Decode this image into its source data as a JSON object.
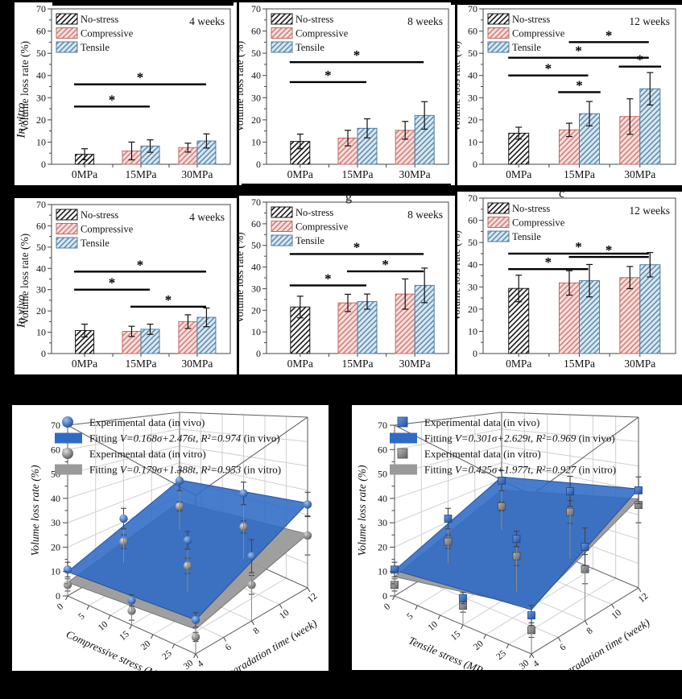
{
  "figure_background": "#000000",
  "row_labels": {
    "in_vitro": "In vitro",
    "in_vivo": "In vivo"
  },
  "redaction_fragments": {
    "middle": "g",
    "right": "c"
  },
  "colors": {
    "no_stress_line": "#1a1a1a",
    "compressive_line": "#d2837b",
    "compressive_fill": "#fadede",
    "compressive_border": "#c2685f",
    "tensile_line": "#628fb0",
    "tensile_fill": "#d9e7f2",
    "tensile_border": "#4e7da0",
    "fit_blue": "#2f6ac5",
    "fit_gray": "#9a9a9a",
    "axis": "#444444",
    "error_bar": "#111111"
  },
  "chart_data": [
    {
      "type": "bar",
      "id": "in-vitro-4w",
      "condition": "in vitro",
      "week": "4 weeks",
      "ylabel": "Volume loss rate (%)",
      "ylim": [
        0,
        70
      ],
      "ytick_major": 10,
      "ytick_minor": 5,
      "categories": [
        "0MPa",
        "15MPa",
        "30MPa"
      ],
      "series": [
        {
          "name": "No-stress",
          "values": [
            4.5,
            null,
            null
          ],
          "errors": [
            2.5,
            null,
            null
          ]
        },
        {
          "name": "Compressive",
          "values": [
            null,
            6,
            7.5
          ],
          "errors": [
            null,
            4,
            2
          ]
        },
        {
          "name": "Tensile",
          "values": [
            null,
            8.2,
            10.5
          ],
          "errors": [
            null,
            2.8,
            3.2
          ]
        }
      ],
      "significance": [
        {
          "y": 26,
          "from": "0MPa",
          "to": "15MPa"
        },
        {
          "y": 36,
          "from": "0MPa",
          "to": "30MPa"
        }
      ]
    },
    {
      "type": "bar",
      "id": "in-vitro-8w",
      "condition": "in vitro",
      "week": "8 weeks",
      "ylabel": "Volume loss rate (%)",
      "ylim": [
        0,
        70
      ],
      "ytick_major": 10,
      "ytick_minor": 5,
      "categories": [
        "0MPa",
        "15MPa",
        "30MPa"
      ],
      "series": [
        {
          "name": "No-stress",
          "values": [
            10.3,
            null,
            null
          ],
          "errors": [
            3.3,
            null,
            null
          ]
        },
        {
          "name": "Compressive",
          "values": [
            null,
            11.8,
            15.3
          ],
          "errors": [
            null,
            3.5,
            4
          ]
        },
        {
          "name": "Tensile",
          "values": [
            null,
            16.2,
            22
          ],
          "errors": [
            null,
            4.3,
            6.2
          ]
        }
      ],
      "significance": [
        {
          "y": 37,
          "from": "0MPa",
          "to": "15MPa"
        },
        {
          "y": 46,
          "from": "0MPa",
          "to": "30MPa"
        }
      ]
    },
    {
      "type": "bar",
      "id": "in-vitro-12w",
      "condition": "in vitro",
      "week": "12 weeks",
      "ylabel": "Volume loss rate (%)",
      "ylim": [
        0,
        70
      ],
      "ytick_major": 10,
      "ytick_minor": 5,
      "categories": [
        "0MPa",
        "15MPa",
        "30MPa"
      ],
      "series": [
        {
          "name": "No-stress",
          "values": [
            14,
            null,
            null
          ],
          "errors": [
            2.7,
            null,
            null
          ]
        },
        {
          "name": "Compressive",
          "values": [
            null,
            15.5,
            21.5
          ],
          "errors": [
            null,
            3,
            8
          ]
        },
        {
          "name": "Tensile",
          "values": [
            null,
            22.8,
            34
          ],
          "errors": [
            null,
            5.5,
            7.3
          ]
        }
      ],
      "significance": [
        {
          "y": 40,
          "from": "0MPa",
          "to": "15MPa"
        },
        {
          "y": 32.5,
          "from": "15MPa.C",
          "to": "15MPa.T"
        },
        {
          "y": 48,
          "from": "0MPa",
          "to": "30MPa"
        },
        {
          "y": 55,
          "from": "15MPa",
          "to": "30MPa"
        },
        {
          "y": 44,
          "from": "30MPa.C",
          "to": "30MPa.T"
        }
      ]
    },
    {
      "type": "bar",
      "id": "in-vivo-4w",
      "condition": "in vivo",
      "week": "4 weeks",
      "ylabel": "Volume loss rate (%)",
      "ylim": [
        0,
        70
      ],
      "ytick_major": 10,
      "ytick_minor": 5,
      "categories": [
        "0MPa",
        "15MPa",
        "30MPa"
      ],
      "series": [
        {
          "name": "No-stress",
          "values": [
            10.8,
            null,
            null
          ],
          "errors": [
            3,
            null,
            null
          ]
        },
        {
          "name": "Compressive",
          "values": [
            null,
            10.4,
            15
          ],
          "errors": [
            null,
            2.4,
            3.2
          ]
        },
        {
          "name": "Tensile",
          "values": [
            null,
            11.4,
            17
          ],
          "errors": [
            null,
            2.4,
            4.4
          ]
        }
      ],
      "significance": [
        {
          "y": 30,
          "from": "0MPa",
          "to": "15MPa"
        },
        {
          "y": 38.5,
          "from": "0MPa",
          "to": "30MPa"
        },
        {
          "y": 22,
          "from": "15MPa",
          "to": "30MPa"
        }
      ]
    },
    {
      "type": "bar",
      "id": "in-vivo-8w",
      "condition": "in vivo",
      "week": "8 weeks",
      "ylabel": "Volume loss rate (%)",
      "ylim": [
        0,
        70
      ],
      "ytick_major": 10,
      "ytick_minor": 5,
      "categories": [
        "0MPa",
        "15MPa",
        "30MPa"
      ],
      "series": [
        {
          "name": "No-stress",
          "values": [
            21.5,
            null,
            null
          ],
          "errors": [
            5,
            null,
            null
          ]
        },
        {
          "name": "Compressive",
          "values": [
            null,
            23.4,
            27.5
          ],
          "errors": [
            null,
            4,
            7
          ]
        },
        {
          "name": "Tensile",
          "values": [
            null,
            24,
            31.5
          ],
          "errors": [
            null,
            3.5,
            8
          ]
        }
      ],
      "significance": [
        {
          "y": 31.5,
          "from": "0MPa",
          "to": "15MPa"
        },
        {
          "y": 46,
          "from": "0MPa",
          "to": "30MPa"
        },
        {
          "y": 38,
          "from": "15MPa",
          "to": "30MPa"
        }
      ]
    },
    {
      "type": "bar",
      "id": "in-vivo-12w",
      "condition": "in vivo",
      "week": "12 weeks",
      "ylabel": "Volume loss rate (%)",
      "ylim": [
        0,
        70
      ],
      "ytick_major": 10,
      "ytick_minor": 5,
      "categories": [
        "0MPa",
        "15MPa",
        "30MPa"
      ],
      "series": [
        {
          "name": "No-stress",
          "values": [
            29.3,
            null,
            null
          ],
          "errors": [
            6,
            null,
            null
          ]
        },
        {
          "name": "Compressive",
          "values": [
            null,
            31.8,
            34.2
          ],
          "errors": [
            null,
            5.5,
            5
          ]
        },
        {
          "name": "Tensile",
          "values": [
            null,
            32.8,
            40
          ],
          "errors": [
            null,
            7.3,
            5.5
          ]
        }
      ],
      "significance": [
        {
          "y": 38,
          "from": "0MPa",
          "to": "15MPa"
        },
        {
          "y": 45,
          "from": "0MPa",
          "to": "30MPa"
        },
        {
          "y": 43.5,
          "from": "15MPa",
          "to": "30MPa"
        }
      ]
    },
    {
      "type": "surface3d",
      "id": "compressive-fit",
      "marker": "sphere",
      "xlabel": "Compressive stress (MPa)",
      "x_ticks": [
        0,
        5,
        10,
        15,
        20,
        25,
        30
      ],
      "depth_label": "Degradation time (week)",
      "depth_ticks": [
        4,
        6,
        8,
        10,
        12
      ],
      "zlabel": "Volume loss rate (%)",
      "zlim": [
        0,
        70
      ],
      "legend": [
        {
          "symbol": "marker-blue",
          "label": "Experimental data (in vivo)"
        },
        {
          "symbol": "plane-blue",
          "pre": "Fitting ",
          "formula": "V=0.168σ+2.476t, R²=0.974",
          "post": " (in vivo)"
        },
        {
          "symbol": "marker-gray",
          "label": "Experimental data (in vitro)"
        },
        {
          "symbol": "plane-gray",
          "pre": "Fitting ",
          "formula": "V=0.179σ+1.388t, R²=0.953",
          "post": "  (in vitro)"
        }
      ],
      "fits": [
        {
          "name": "in vivo",
          "a": 0.168,
          "b": 2.476,
          "r2": 0.974
        },
        {
          "name": "in vitro",
          "a": 0.179,
          "b": 1.388,
          "r2": 0.953
        }
      ],
      "points_in_vivo": [
        [
          0,
          4,
          10.8,
          3
        ],
        [
          15,
          4,
          10.4,
          2.4
        ],
        [
          30,
          4,
          15,
          3.2
        ],
        [
          0,
          8,
          21.5,
          5
        ],
        [
          15,
          8,
          23.4,
          4
        ],
        [
          30,
          8,
          27.5,
          7
        ],
        [
          0,
          12,
          29.3,
          6
        ],
        [
          15,
          12,
          31.8,
          5.5
        ],
        [
          30,
          12,
          34.2,
          5
        ]
      ],
      "points_in_vitro": [
        [
          0,
          4,
          4.5,
          2.5
        ],
        [
          15,
          4,
          6,
          4
        ],
        [
          30,
          4,
          7.5,
          2
        ],
        [
          0,
          8,
          10.3,
          3.3
        ],
        [
          15,
          8,
          11.8,
          3.5
        ],
        [
          30,
          8,
          15.3,
          4
        ],
        [
          0,
          12,
          14,
          2.7
        ],
        [
          15,
          12,
          15.5,
          3
        ],
        [
          30,
          12,
          21.5,
          8
        ]
      ]
    },
    {
      "type": "surface3d",
      "id": "tensile-fit",
      "marker": "cube",
      "xlabel": "Tensile stress (MPa)",
      "x_ticks": [
        0,
        5,
        10,
        15,
        20,
        25,
        30
      ],
      "depth_label": "Degradation time (week)",
      "depth_ticks": [
        4,
        6,
        8,
        10,
        12
      ],
      "zlabel": "Volume loss rate (%)",
      "zlim": [
        0,
        70
      ],
      "legend": [
        {
          "symbol": "marker-blue",
          "label": "Experimental data (in vivo)"
        },
        {
          "symbol": "plane-blue",
          "pre": "Fitting ",
          "formula": "V=0.301σ+2.629t, R²=0.969",
          "post": "  (in vivo)"
        },
        {
          "symbol": "marker-gray",
          "label": "Experimental data (in vitro)"
        },
        {
          "symbol": "plane-gray",
          "pre": "Fitting ",
          "formula": "V=0.425σ+1.977t, R²=0.927",
          "post": "  (in vitro)"
        }
      ],
      "fits": [
        {
          "name": "in vivo",
          "a": 0.301,
          "b": 2.629,
          "r2": 0.969
        },
        {
          "name": "in vitro",
          "a": 0.425,
          "b": 1.977,
          "r2": 0.927
        }
      ],
      "points_in_vivo": [
        [
          0,
          4,
          10.8,
          3
        ],
        [
          15,
          4,
          11.4,
          2.4
        ],
        [
          30,
          4,
          17,
          4.4
        ],
        [
          0,
          8,
          21.5,
          5
        ],
        [
          15,
          8,
          24,
          3.5
        ],
        [
          30,
          8,
          31.5,
          8
        ],
        [
          0,
          12,
          29.3,
          6
        ],
        [
          15,
          12,
          32.8,
          7.3
        ],
        [
          30,
          12,
          40,
          5.5
        ]
      ],
      "points_in_vitro": [
        [
          0,
          4,
          4.5,
          2.5
        ],
        [
          15,
          4,
          8.2,
          2.8
        ],
        [
          30,
          4,
          10.5,
          3.2
        ],
        [
          0,
          8,
          10.3,
          3.3
        ],
        [
          15,
          8,
          16.2,
          4.3
        ],
        [
          30,
          8,
          22,
          6.2
        ],
        [
          0,
          12,
          14,
          2.7
        ],
        [
          15,
          12,
          22.8,
          5.5
        ],
        [
          30,
          12,
          34,
          7.3
        ]
      ]
    }
  ]
}
